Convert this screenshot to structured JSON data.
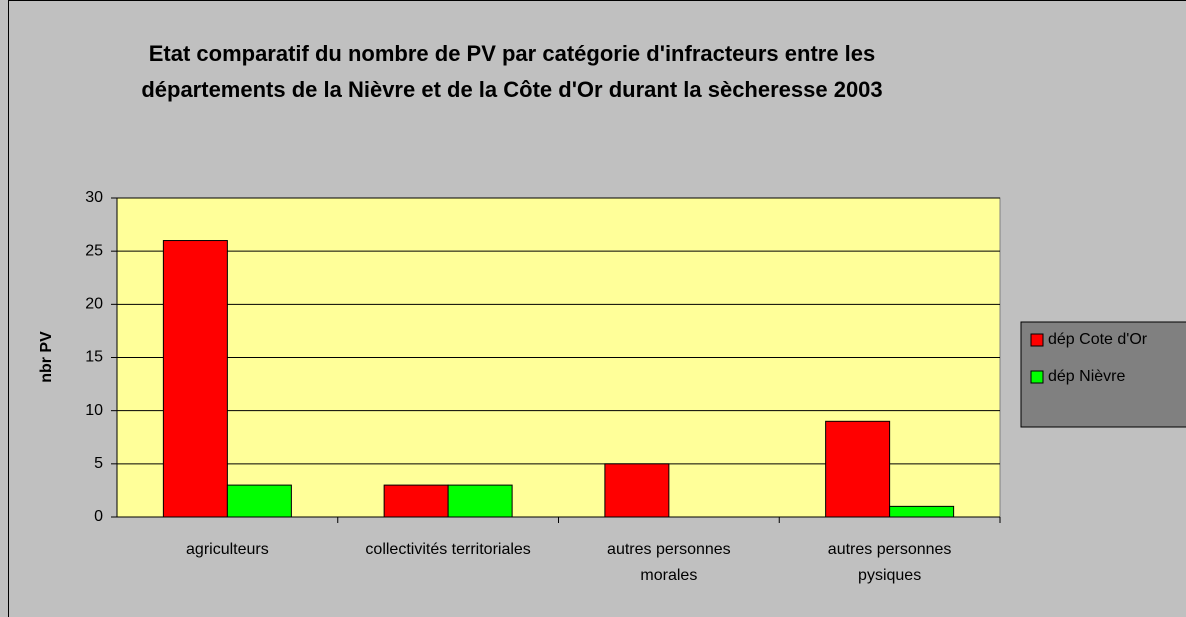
{
  "chart_data": {
    "type": "bar",
    "title": "Etat comparatif du nombre de PV par catégorie d'infracteurs entre les départements de la Nièvre et de la Côte d'Or durant la sècheresse 2003",
    "y_label": "nbr PV",
    "categories": [
      "agriculteurs",
      "collectivités territoriales",
      "autres personnes morales",
      "autres personnes pysiques"
    ],
    "series": [
      {
        "name": "dép Cote d'Or",
        "color": "#ff0000",
        "values": [
          26,
          3,
          5,
          9
        ]
      },
      {
        "name": "dép Nièvre",
        "color": "#00ff00",
        "values": [
          3,
          3,
          0,
          1
        ]
      }
    ],
    "ylim": [
      0,
      30
    ],
    "yticks": [
      0,
      5,
      10,
      15,
      20,
      25,
      30
    ],
    "grid": true,
    "legend": "right"
  }
}
